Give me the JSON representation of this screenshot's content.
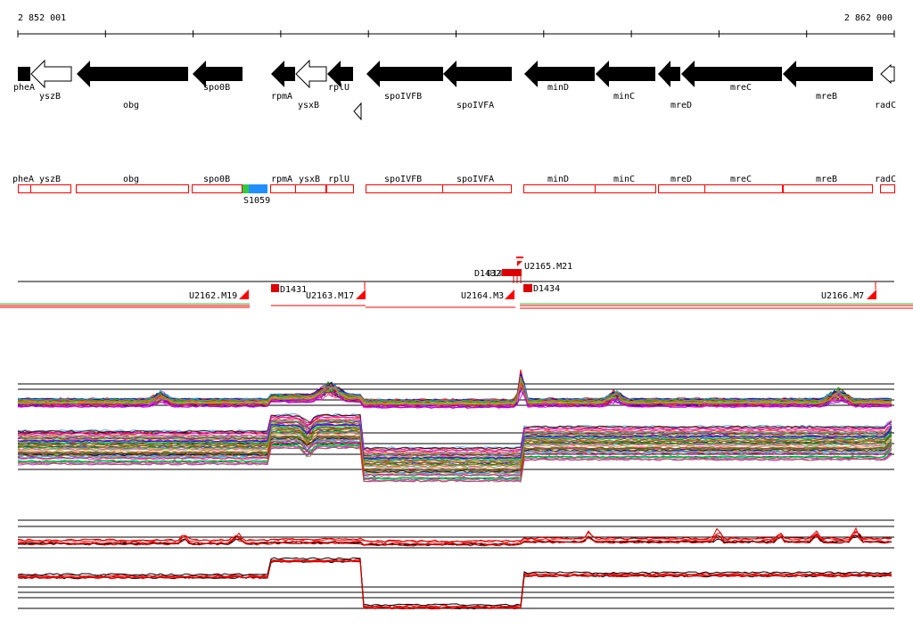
{
  "coords": {
    "start": "2 852 001",
    "end": "2 862 000"
  },
  "colors": {
    "black": "#000000",
    "red": "#ff0000",
    "darkred": "#cc0000",
    "green": "#2ecc40",
    "blue": "#1e90ff"
  },
  "genes": [
    {
      "name": "pheA",
      "strand": "+",
      "filled": true,
      "label_row": "upper"
    },
    {
      "name": "yszB",
      "strand": "-",
      "filled": false,
      "label_row": "upper"
    },
    {
      "name": "obg",
      "strand": "-",
      "filled": true,
      "label_row": "lower"
    },
    {
      "name": "spo0B",
      "strand": "-",
      "filled": true,
      "label_row": "upper"
    },
    {
      "name": "rpmA",
      "strand": "-",
      "filled": true,
      "label_row": "upper"
    },
    {
      "name": "ysxB",
      "strand": "-",
      "filled": false,
      "label_row": "lower"
    },
    {
      "name": "rplU",
      "strand": "-",
      "filled": true,
      "label_row": "upper"
    },
    {
      "name": "spoIVFB",
      "strand": "-",
      "filled": true,
      "label_row": "upper"
    },
    {
      "name": "spoIVFA",
      "strand": "-",
      "filled": true,
      "label_row": "lower"
    },
    {
      "name": "minD",
      "strand": "-",
      "filled": true,
      "label_row": "upper"
    },
    {
      "name": "minC",
      "strand": "-",
      "filled": true,
      "label_row": "upper"
    },
    {
      "name": "mreD",
      "strand": "-",
      "filled": true,
      "label_row": "lower"
    },
    {
      "name": "mreC",
      "strand": "-",
      "filled": true,
      "label_row": "upper"
    },
    {
      "name": "mreB",
      "strand": "-",
      "filled": true,
      "label_row": "upper"
    },
    {
      "name": "radC",
      "strand": "-",
      "filled": false,
      "label_row": "lower"
    }
  ],
  "region_labels": [
    "pheA",
    "yszB",
    "obg",
    "spo0B",
    "rpmA",
    "ysxB",
    "rplU",
    "spoIVFB",
    "spoIVFA",
    "minD",
    "minC",
    "mreD",
    "mreC",
    "mreB",
    "radC"
  ],
  "s_feature": "S1059",
  "u_features": [
    "U2162.M19",
    "U2163.M17",
    "U2164.M3",
    "U2165.M21",
    "U2166.M7"
  ],
  "d_features": [
    "D1431",
    "D1434",
    "D1432"
  ],
  "stacked_label": "D1432"
}
